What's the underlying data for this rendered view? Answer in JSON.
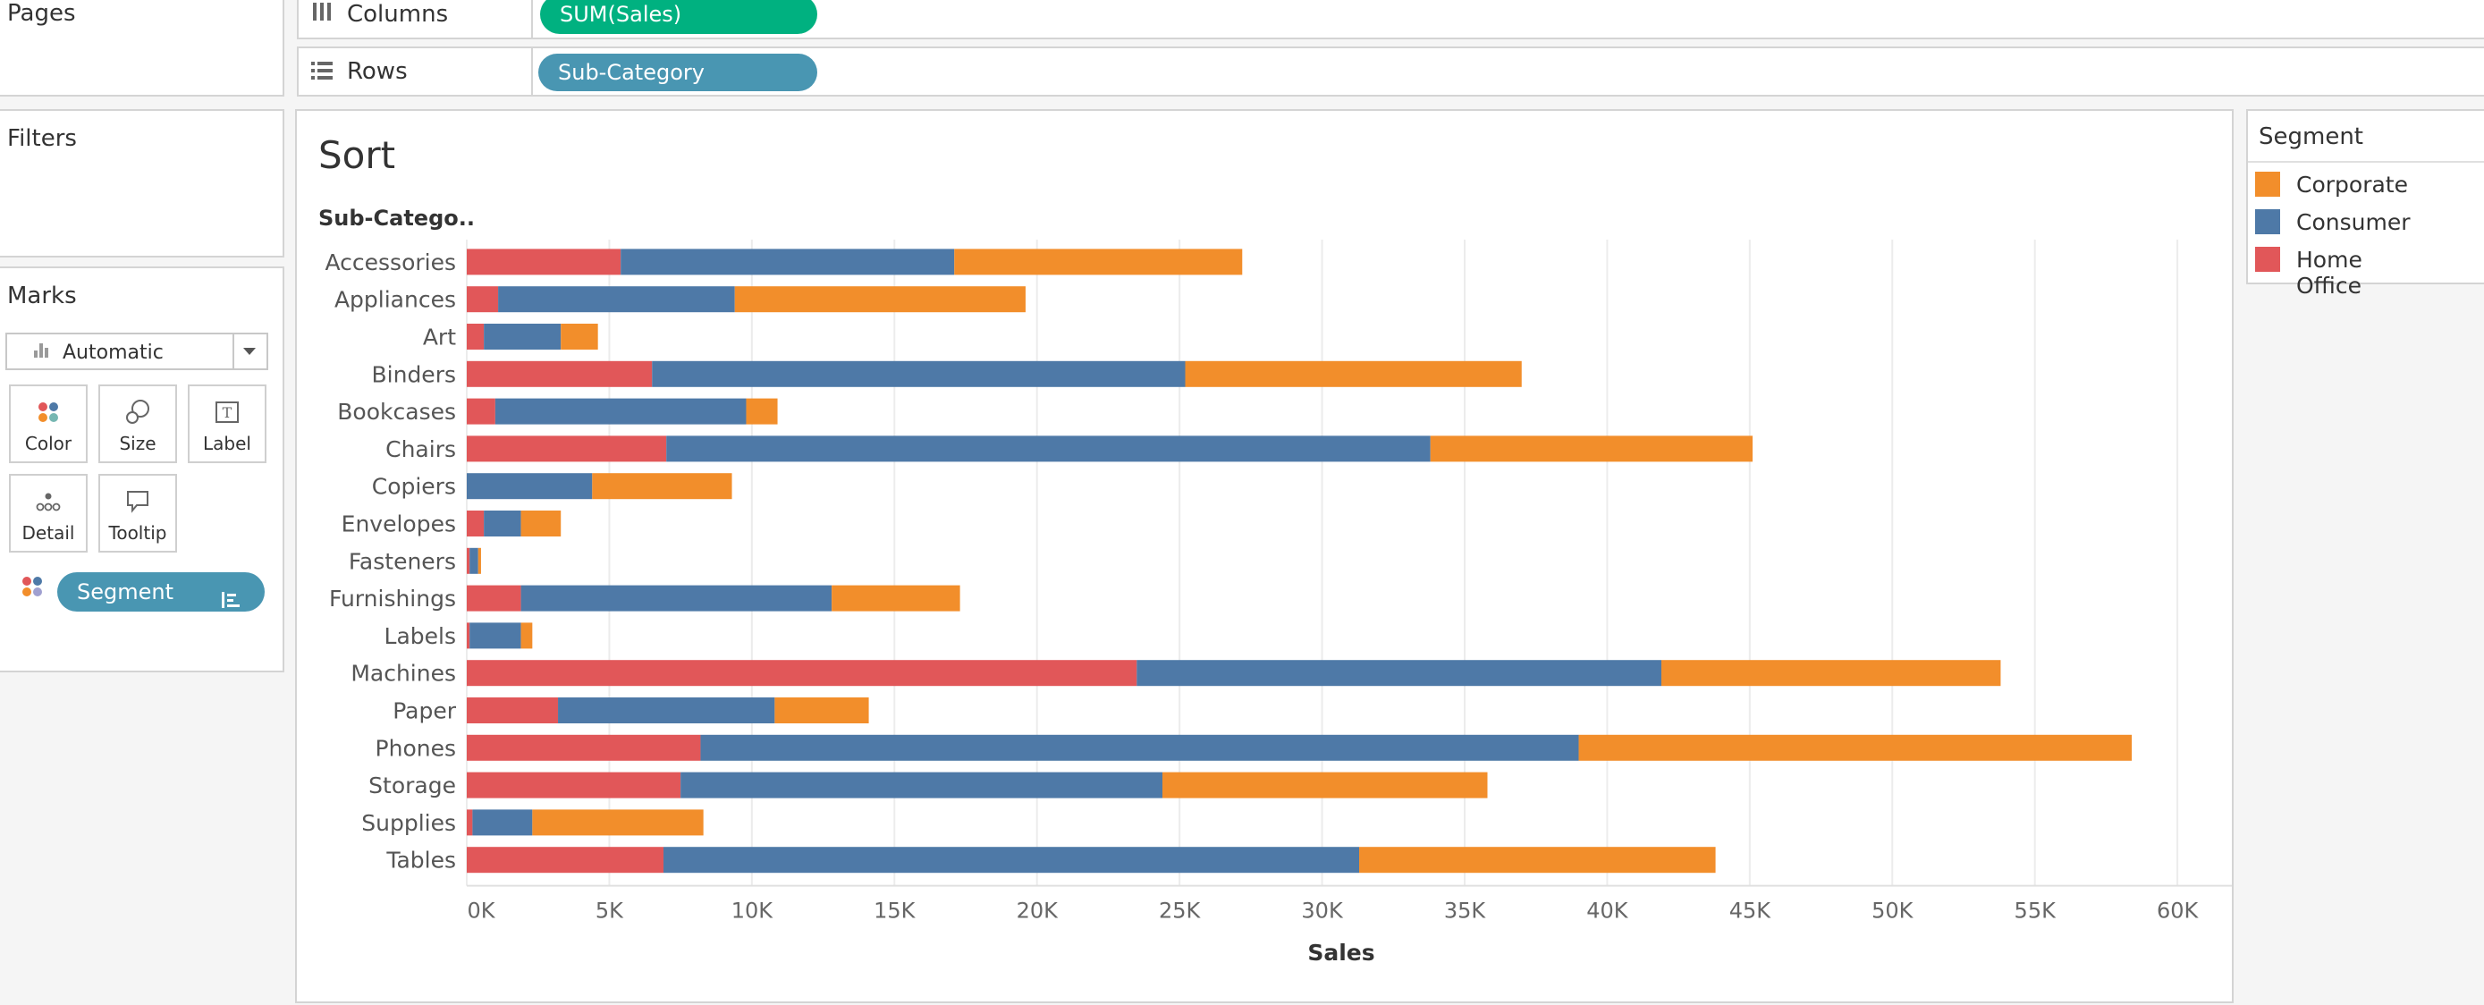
{
  "left_panel": {
    "pages_title": "Pages",
    "filters_title": "Filters",
    "marks_title": "Marks",
    "mark_type": "Automatic",
    "mark_cards": [
      {
        "label": "Color",
        "icon": "color-dots-icon"
      },
      {
        "label": "Size",
        "icon": "size-circles-icon"
      },
      {
        "label": "Label",
        "icon": "text-label-icon"
      },
      {
        "label": "Detail",
        "icon": "detail-dots-icon"
      },
      {
        "label": "Tooltip",
        "icon": "tooltip-bubble-icon"
      }
    ],
    "color_pill": "Segment"
  },
  "shelves": {
    "columns_label": "Columns",
    "columns_pill": "SUM(Sales)",
    "rows_label": "Rows",
    "rows_pill": "Sub-Category"
  },
  "colors": {
    "corporate": "#f28e2b",
    "consumer": "#4e79a7",
    "home_office": "#e15759",
    "pill_green": "#00b180",
    "pill_teal": "#4996b2"
  },
  "legend": {
    "title": "Segment",
    "items": [
      {
        "name": "Corporate",
        "color": "#f28e2b"
      },
      {
        "name": "Consumer",
        "color": "#4e79a7"
      },
      {
        "name": "Home Office",
        "color": "#e15759"
      }
    ]
  },
  "chart_data": {
    "type": "bar",
    "orientation": "horizontal",
    "stacked": true,
    "title": "Sort",
    "row_header": "Sub-Catego..",
    "xlabel": "Sales",
    "xlim": [
      0,
      61000
    ],
    "x_ticks": [
      0,
      5000,
      10000,
      15000,
      20000,
      25000,
      30000,
      35000,
      40000,
      45000,
      50000,
      55000,
      60000
    ],
    "x_tick_labels": [
      "0K",
      "5K",
      "10K",
      "15K",
      "20K",
      "25K",
      "30K",
      "35K",
      "40K",
      "45K",
      "50K",
      "55K",
      "60K"
    ],
    "grid": "vertical",
    "categories": [
      "Accessories",
      "Appliances",
      "Art",
      "Binders",
      "Bookcases",
      "Chairs",
      "Copiers",
      "Envelopes",
      "Fasteners",
      "Furnishings",
      "Labels",
      "Machines",
      "Paper",
      "Phones",
      "Storage",
      "Supplies",
      "Tables"
    ],
    "series": [
      {
        "name": "Home Office",
        "color": "#e15759",
        "values": [
          5400,
          1100,
          600,
          6500,
          1000,
          7000,
          0,
          600,
          100,
          1900,
          100,
          23500,
          3200,
          8200,
          7500,
          200,
          6900
        ]
      },
      {
        "name": "Consumer",
        "color": "#4e79a7",
        "values": [
          11700,
          8300,
          2700,
          18700,
          8800,
          26800,
          4400,
          1300,
          300,
          10900,
          1800,
          18400,
          7600,
          30800,
          16900,
          2100,
          24400
        ]
      },
      {
        "name": "Corporate",
        "color": "#f28e2b",
        "values": [
          10100,
          10200,
          1300,
          11800,
          1100,
          11300,
          4900,
          1400,
          100,
          4500,
          400,
          11900,
          3300,
          19400,
          11400,
          6000,
          12500
        ]
      }
    ]
  }
}
